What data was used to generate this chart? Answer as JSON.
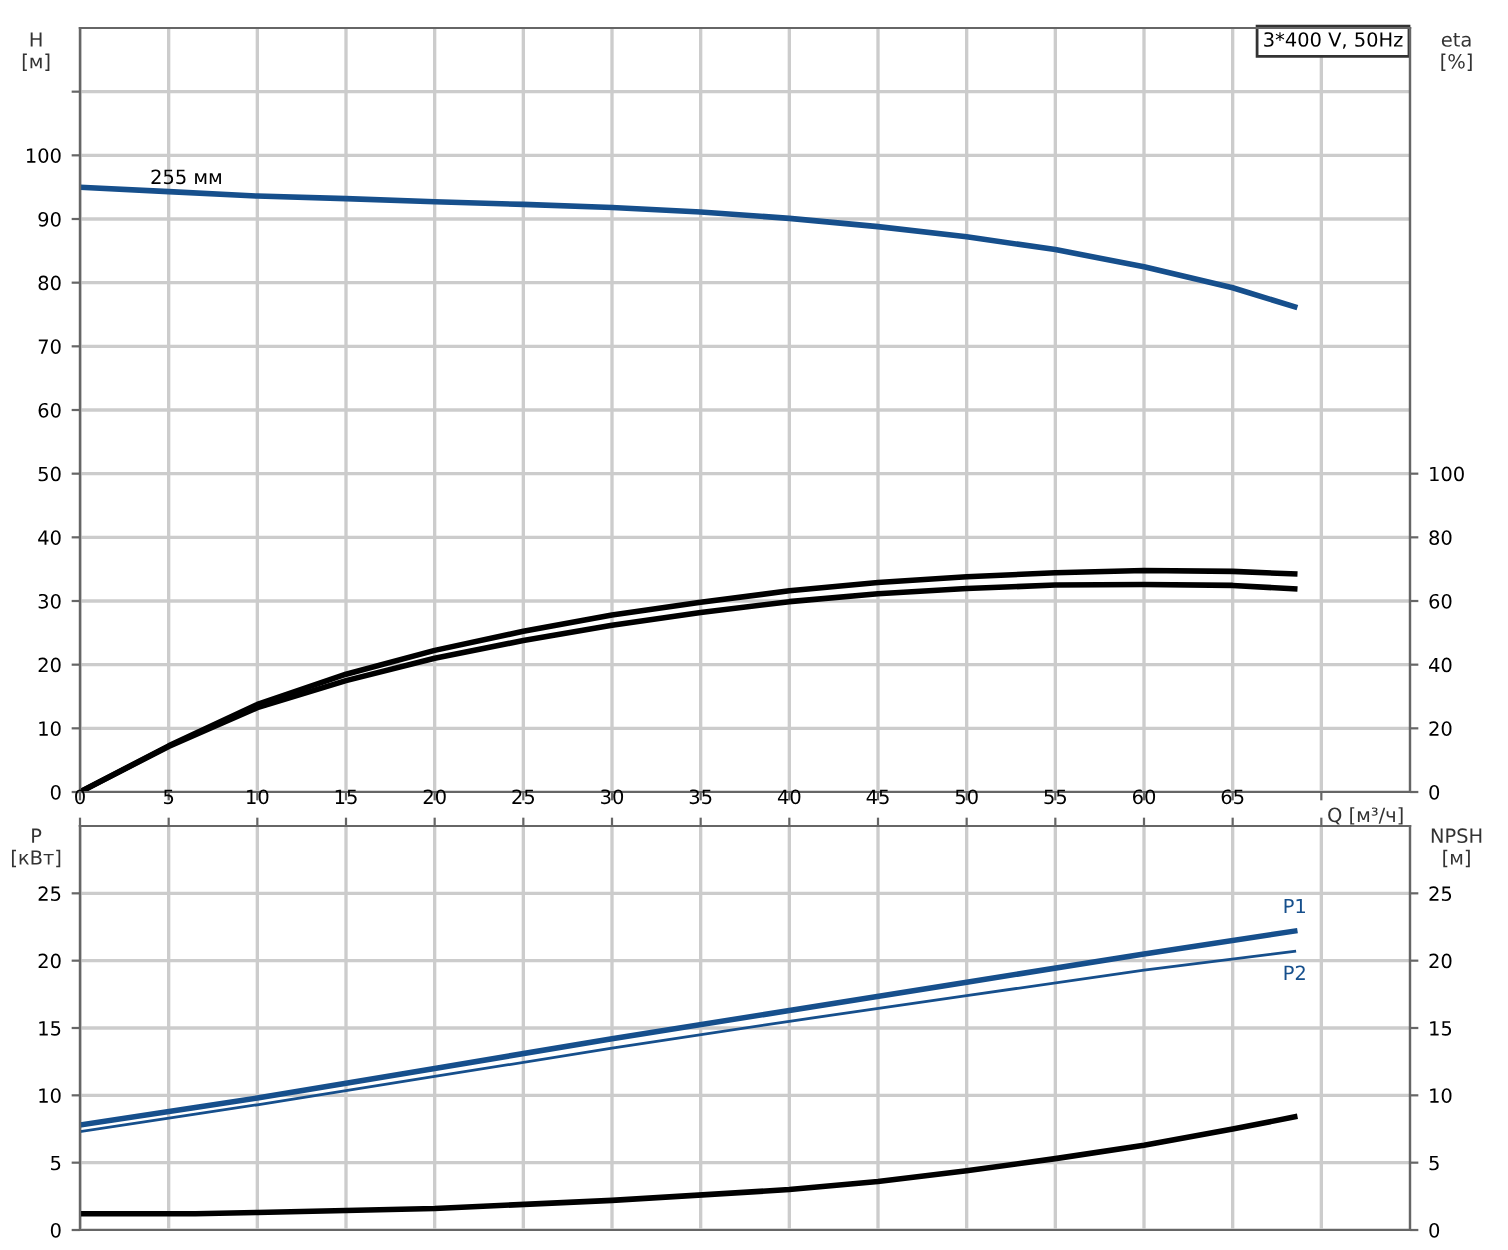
{
  "chart_data": [
    {
      "type": "line",
      "title": "3*400 V, 50Hz",
      "ylabel": "H\n[м]",
      "y2label": "eta\n[%]",
      "tick_labels": "y",
      "xlim": [
        0,
        75
      ],
      "xticks": [
        0,
        5,
        10,
        15,
        20,
        25,
        30,
        35,
        40,
        45,
        50,
        55,
        60,
        65,
        {
          "value": 70,
          "label": null
        }
      ],
      "ylim": [
        0,
        120
      ],
      "yticks": [
        0,
        10,
        20,
        30,
        40,
        50,
        60,
        70,
        80,
        90,
        100,
        {
          "value": 110,
          "label": null
        }
      ],
      "y2lim": [
        0,
        240
      ],
      "y2ticks": [
        0,
        20,
        40,
        60,
        80,
        100
      ],
      "grid": true,
      "legend": false,
      "annotations": [
        {
          "text": "255 мм",
          "x": 6,
          "y": 94
        }
      ],
      "series": [
        {
          "color": "#164f8c",
          "x": [
            0,
            5,
            10,
            15,
            20,
            25,
            30,
            35,
            40,
            45,
            50,
            55,
            60,
            65,
            68.5
          ],
          "values": [
            95,
            94.3,
            93.6,
            93.2,
            92.7,
            92.3,
            91.8,
            91.1,
            90.1,
            88.8,
            87.2,
            85.2,
            82.5,
            79.2,
            76.2
          ]
        },
        {
          "color": "#000000",
          "axis": "y2",
          "x": [
            0,
            5,
            10,
            15,
            20,
            25,
            30,
            35,
            40,
            45,
            50,
            55,
            60,
            65,
            68.5
          ],
          "values": [
            0,
            14.5,
            27.5,
            37,
            44.5,
            50.5,
            55.6,
            59.6,
            63.2,
            65.8,
            67.6,
            68.9,
            69.6,
            69.3,
            68.5
          ]
        },
        {
          "color": "#000000",
          "axis": "y2",
          "x": [
            0,
            5,
            10,
            15,
            20,
            25,
            30,
            35,
            40,
            45,
            50,
            55,
            60,
            65,
            68.5
          ],
          "values": [
            0,
            14.3,
            26.5,
            35,
            42,
            47.6,
            52.4,
            56.4,
            59.8,
            62.3,
            63.9,
            65,
            65.2,
            64.9,
            63.8
          ]
        }
      ]
    },
    {
      "type": "line",
      "xlabel": "Q [м³/ч]",
      "ylabel": "P\n[кВт]",
      "y2label": "NPSH\n[м]",
      "xlim": [
        0,
        75
      ],
      "xticks": [
        0,
        5,
        10,
        15,
        20,
        25,
        30,
        35,
        40,
        45,
        50,
        55,
        60,
        65,
        {
          "value": 70,
          "label": null
        }
      ],
      "ylim": [
        0,
        30
      ],
      "yticks": [
        0,
        5,
        10,
        15,
        20,
        25
      ],
      "y2lim": [
        0,
        30
      ],
      "y2ticks": [
        0,
        5,
        10,
        15,
        20,
        25
      ],
      "grid": true,
      "legend": false,
      "series": [
        {
          "name": "P1",
          "color": "#164f8c",
          "x": [
            0,
            6.5,
            10,
            20,
            30,
            40,
            50,
            60,
            68.5
          ],
          "values": [
            7.8,
            9.1,
            9.8,
            12.0,
            14.2,
            16.3,
            18.4,
            20.5,
            22.2
          ]
        },
        {
          "name": "P2",
          "color": "#164f8c",
          "x": [
            0,
            6.5,
            10,
            20,
            30,
            40,
            50,
            60,
            68.5
          ],
          "values": [
            7.3,
            8.6,
            9.3,
            11.4,
            13.5,
            15.5,
            17.4,
            19.3,
            20.7
          ]
        },
        {
          "color": "#000000",
          "axis": "y2",
          "x": [
            0,
            6.5,
            10,
            20,
            30,
            40,
            45,
            50,
            55,
            60,
            65,
            68.5
          ],
          "values": [
            1.2,
            1.2,
            1.3,
            1.6,
            2.2,
            3.0,
            3.6,
            4.4,
            5.3,
            6.3,
            7.5,
            8.4
          ]
        }
      ]
    }
  ]
}
